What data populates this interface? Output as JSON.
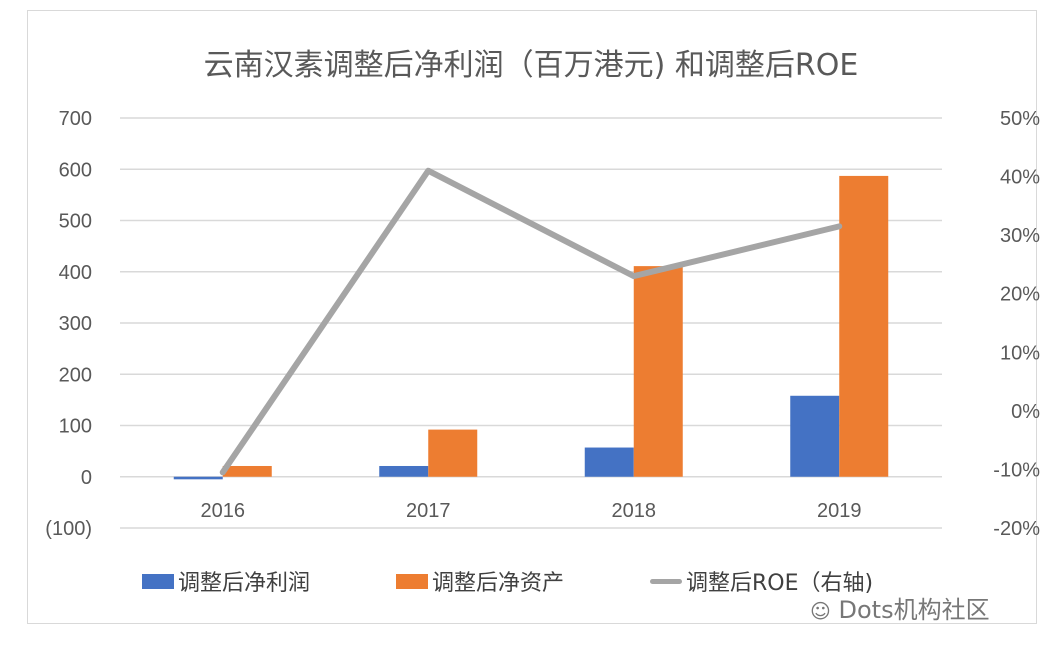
{
  "chart_data": {
    "type": "bar",
    "title": "云南汉素调整后净利润（百万港元) 和调整后ROE",
    "categories": [
      "2016",
      "2017",
      "2018",
      "2019"
    ],
    "series": [
      {
        "name": "调整后净利润",
        "type": "bar",
        "axis": "left",
        "color": "#4472C4",
        "values": [
          -5,
          21,
          57,
          158
        ]
      },
      {
        "name": "调整后净资产",
        "type": "bar",
        "axis": "left",
        "color": "#ED7D31",
        "values": [
          21,
          92,
          411,
          587
        ]
      },
      {
        "name": "调整后ROE（右轴)",
        "type": "line",
        "axis": "right",
        "color": "#A5A5A5",
        "values": [
          -10.5,
          41,
          23,
          31.5
        ]
      }
    ],
    "left_axis": {
      "ylim": [
        -100,
        700
      ],
      "tick_labels": [
        "(100)",
        "0",
        "100",
        "200",
        "300",
        "400",
        "500",
        "600",
        "700"
      ],
      "negative_label_color": "#FF0000"
    },
    "right_axis": {
      "ylim": [
        -20,
        50
      ],
      "tick_labels": [
        "-20%",
        "-10%",
        "0%",
        "10%",
        "20%",
        "30%",
        "40%",
        "50%"
      ]
    },
    "grid": true,
    "legend": "bottom"
  },
  "watermark": "Dots机构社区"
}
